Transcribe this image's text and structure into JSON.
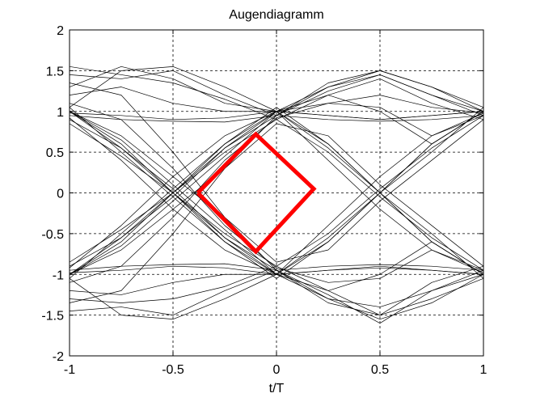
{
  "chart_data": {
    "type": "line",
    "title": "Augendiagramm",
    "xlabel": "t/T",
    "ylabel": "",
    "xlim": [
      -1,
      1
    ],
    "ylim": [
      -2,
      2
    ],
    "grid": true,
    "grid_style": "dashed",
    "x_ticks": [
      -1,
      -0.5,
      0,
      0.5,
      1
    ],
    "x_tick_labels": [
      "-1",
      "-0.5",
      "0",
      "0.5",
      "1"
    ],
    "y_ticks": [
      -2,
      -1.5,
      -1,
      -0.5,
      0,
      0.5,
      1,
      1.5,
      2
    ],
    "y_tick_labels": [
      "-2",
      "-1.5",
      "-1",
      "-0.5",
      "0",
      "0.5",
      "1",
      "1.5",
      "2"
    ],
    "trace_color": "#000000",
    "eye_color": "#ff0000",
    "trace_x": [
      -1,
      -0.75,
      -0.5,
      -0.25,
      0,
      0.25,
      0.5,
      0.75,
      1
    ],
    "traces": [
      {
        "values": [
          1.05,
          1.5,
          1.55,
          1.3,
          1.0,
          1.3,
          1.5,
          1.3,
          1.0
        ]
      },
      {
        "values": [
          1.45,
          1.4,
          1.5,
          1.2,
          0.95,
          1.25,
          1.45,
          1.2,
          0.95
        ]
      },
      {
        "values": [
          1.55,
          1.45,
          1.35,
          1.15,
          0.9,
          1.2,
          1.4,
          1.1,
          0.9
        ]
      },
      {
        "values": [
          1.3,
          1.55,
          1.4,
          1.1,
          1.0,
          0.95,
          0.9,
          0.95,
          1.0
        ]
      },
      {
        "values": [
          0.95,
          0.9,
          0.88,
          0.87,
          0.95,
          0.9,
          0.88,
          0.9,
          0.95
        ]
      },
      {
        "values": [
          1.0,
          0.6,
          0.0,
          -0.6,
          -1.0,
          -1.2,
          -1.0,
          -0.6,
          -1.0
        ]
      },
      {
        "values": [
          0.9,
          0.55,
          0.05,
          -0.55,
          -0.95,
          -1.3,
          -1.4,
          -1.2,
          -1.0
        ]
      },
      {
        "values": [
          1.05,
          0.5,
          -0.05,
          -0.6,
          -1.05,
          -0.6,
          0.0,
          0.6,
          1.0
        ]
      },
      {
        "values": [
          0.85,
          0.45,
          0.0,
          -0.5,
          -0.9,
          -0.5,
          0.05,
          0.55,
          0.95
        ]
      },
      {
        "values": [
          1.0,
          0.65,
          0.1,
          -0.45,
          -1.0,
          -0.55,
          0.0,
          0.5,
          1.05
        ]
      },
      {
        "values": [
          -1.0,
          -0.6,
          0.0,
          0.6,
          1.0,
          1.2,
          1.0,
          0.6,
          1.0
        ]
      },
      {
        "values": [
          -0.9,
          -0.55,
          -0.05,
          0.55,
          0.95,
          1.3,
          1.45,
          1.2,
          1.0
        ]
      },
      {
        "values": [
          -1.05,
          -0.5,
          0.05,
          0.6,
          1.05,
          0.6,
          0.0,
          -0.6,
          -1.0
        ]
      },
      {
        "values": [
          -0.85,
          -0.45,
          0.0,
          0.5,
          0.9,
          0.5,
          -0.05,
          -0.55,
          -0.95
        ]
      },
      {
        "values": [
          -1.0,
          -0.65,
          -0.1,
          0.45,
          1.0,
          0.55,
          0.0,
          -0.5,
          -1.05
        ]
      },
      {
        "values": [
          -0.95,
          -0.9,
          -0.88,
          -0.87,
          -0.95,
          -0.9,
          -0.88,
          -0.9,
          -0.95
        ]
      },
      {
        "values": [
          -1.05,
          -1.5,
          -1.55,
          -1.3,
          -1.0,
          -1.3,
          -1.55,
          -1.35,
          -1.0
        ]
      },
      {
        "values": [
          -1.45,
          -1.4,
          -1.5,
          -1.2,
          -0.95,
          -1.25,
          -1.6,
          -1.2,
          -0.95
        ]
      },
      {
        "values": [
          -1.3,
          -1.35,
          -1.3,
          -1.15,
          -0.9,
          -1.2,
          -1.5,
          -1.1,
          -0.9
        ]
      },
      {
        "values": [
          -1.2,
          -1.25,
          -1.1,
          -1.0,
          -1.0,
          -0.95,
          -0.92,
          -0.95,
          -1.0
        ]
      },
      {
        "values": [
          1.2,
          1.3,
          1.1,
          1.0,
          1.0,
          1.1,
          1.2,
          1.05,
          0.98
        ]
      },
      {
        "values": [
          1.1,
          0.9,
          0.3,
          -0.4,
          -0.92,
          -1.1,
          -1.05,
          -0.7,
          -0.95
        ]
      },
      {
        "values": [
          -1.1,
          -0.9,
          -0.3,
          0.4,
          0.92,
          1.1,
          1.05,
          0.7,
          0.95
        ]
      },
      {
        "values": [
          0.92,
          0.4,
          -0.2,
          -0.7,
          -1.0,
          -0.4,
          0.2,
          0.7,
          0.98
        ]
      },
      {
        "values": [
          -0.92,
          -0.4,
          0.2,
          0.7,
          1.0,
          0.4,
          -0.2,
          -0.7,
          -0.98
        ]
      },
      {
        "values": [
          1.0,
          0.7,
          0.2,
          -0.3,
          -0.85,
          -0.7,
          -0.1,
          0.4,
          0.9
        ]
      },
      {
        "values": [
          -1.0,
          -0.7,
          -0.2,
          0.3,
          0.85,
          0.7,
          0.1,
          -0.4,
          -0.9
        ]
      },
      {
        "values": [
          1.35,
          1.2,
          0.5,
          -0.3,
          -0.95,
          -1.35,
          -1.5,
          -1.3,
          -1.05
        ]
      },
      {
        "values": [
          -1.35,
          -1.2,
          -0.5,
          0.3,
          0.95,
          1.35,
          1.5,
          1.3,
          1.05
        ]
      },
      {
        "values": [
          0.98,
          0.95,
          0.9,
          0.92,
          1.0,
          0.6,
          0.0,
          -0.6,
          -1.0
        ]
      },
      {
        "values": [
          -0.98,
          -0.95,
          -0.9,
          -0.92,
          -1.0,
          -0.6,
          0.0,
          0.6,
          1.0
        ]
      },
      {
        "values": [
          1.0,
          0.55,
          0.0,
          -0.55,
          -1.0,
          -0.95,
          -0.9,
          -0.95,
          -1.0
        ]
      },
      {
        "values": [
          -1.0,
          -0.55,
          0.0,
          0.55,
          1.0,
          0.95,
          0.9,
          0.95,
          1.0
        ]
      }
    ],
    "eye_opening": {
      "x": [
        -0.38,
        -0.1,
        0.18,
        -0.1,
        -0.38
      ],
      "y": [
        0.0,
        0.72,
        0.05,
        -0.72,
        0.0
      ]
    }
  }
}
